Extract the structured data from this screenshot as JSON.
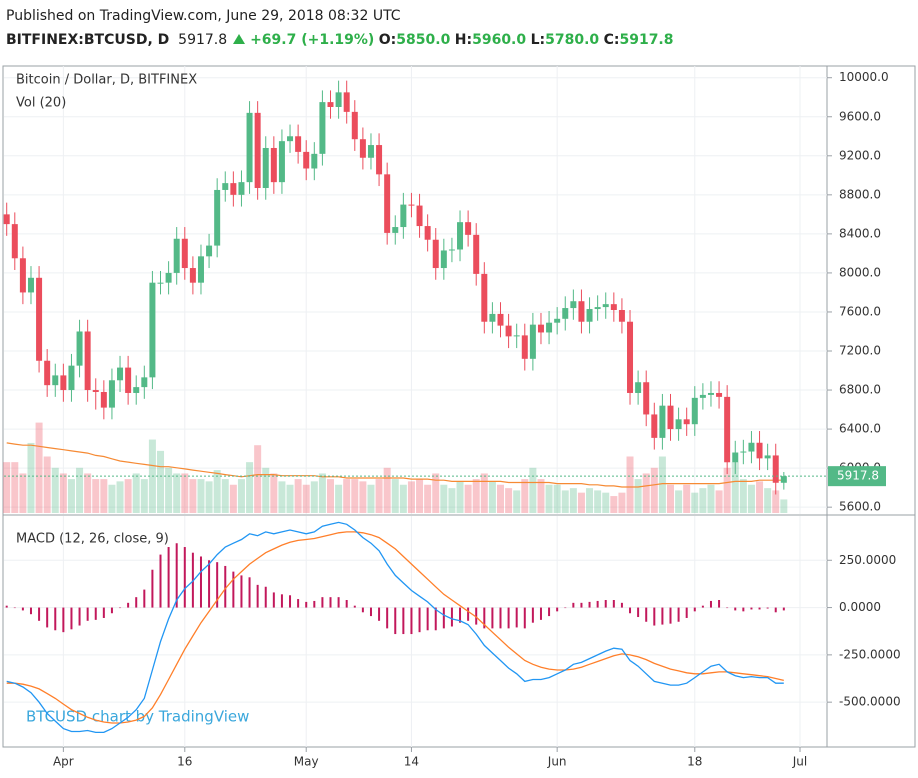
{
  "header": {
    "published": "Published on TradingView.com, June 29, 2018 08:32 UTC",
    "symbol": "BITFINEX:BTCUSD, D",
    "last": "5917.8",
    "change": "+69.7 (+1.19%)",
    "o_label": "O:",
    "o": "5850.0",
    "h_label": "H:",
    "h": "5960.0",
    "l_label": "L:",
    "l": "5780.0",
    "c_label": "C:",
    "c": "5917.8"
  },
  "chart_data": [
    {
      "type": "candlestick",
      "title": "Bitcoin / Dollar, D, BITFINEX",
      "watermark": "BTCUSD chart by TradingView",
      "up_color": "#53b987",
      "down_color": "#eb4d5c",
      "x": [
        "2018-03-25",
        "2018-03-26",
        "2018-03-27",
        "2018-03-28",
        "2018-03-29",
        "2018-03-30",
        "2018-03-31",
        "2018-04-01",
        "2018-04-02",
        "2018-04-03",
        "2018-04-04",
        "2018-04-05",
        "2018-04-06",
        "2018-04-07",
        "2018-04-08",
        "2018-04-09",
        "2018-04-10",
        "2018-04-11",
        "2018-04-12",
        "2018-04-13",
        "2018-04-14",
        "2018-04-15",
        "2018-04-16",
        "2018-04-17",
        "2018-04-18",
        "2018-04-19",
        "2018-04-20",
        "2018-04-21",
        "2018-04-22",
        "2018-04-23",
        "2018-04-24",
        "2018-04-25",
        "2018-04-26",
        "2018-04-27",
        "2018-04-28",
        "2018-04-29",
        "2018-04-30",
        "2018-05-01",
        "2018-05-02",
        "2018-05-03",
        "2018-05-04",
        "2018-05-05",
        "2018-05-06",
        "2018-05-07",
        "2018-05-08",
        "2018-05-09",
        "2018-05-10",
        "2018-05-11",
        "2018-05-12",
        "2018-05-13",
        "2018-05-14",
        "2018-05-15",
        "2018-05-16",
        "2018-05-17",
        "2018-05-18",
        "2018-05-19",
        "2018-05-20",
        "2018-05-21",
        "2018-05-22",
        "2018-05-23",
        "2018-05-24",
        "2018-05-25",
        "2018-05-26",
        "2018-05-27",
        "2018-05-28",
        "2018-05-29",
        "2018-05-30",
        "2018-05-31",
        "2018-06-01",
        "2018-06-02",
        "2018-06-03",
        "2018-06-04",
        "2018-06-05",
        "2018-06-06",
        "2018-06-07",
        "2018-06-08",
        "2018-06-09",
        "2018-06-10",
        "2018-06-11",
        "2018-06-12",
        "2018-06-13",
        "2018-06-14",
        "2018-06-15",
        "2018-06-16",
        "2018-06-17",
        "2018-06-18",
        "2018-06-19",
        "2018-06-20",
        "2018-06-21",
        "2018-06-22",
        "2018-06-23",
        "2018-06-24",
        "2018-06-25",
        "2018-06-26",
        "2018-06-27",
        "2018-06-28",
        "2018-06-29"
      ],
      "open": [
        8600,
        8500,
        8150,
        7800,
        7950,
        7100,
        6850,
        6950,
        6800,
        7050,
        7400,
        6800,
        6780,
        6620,
        6900,
        7030,
        6770,
        6830,
        6930,
        7900,
        7900,
        8000,
        8350,
        8050,
        7900,
        8170,
        8280,
        8850,
        8920,
        8800,
        8930,
        9640,
        8870,
        9280,
        8930,
        9350,
        9400,
        9240,
        9070,
        9220,
        9750,
        9700,
        9850,
        9650,
        9370,
        9180,
        9310,
        9010,
        8410,
        8470,
        8700,
        8690,
        8480,
        8340,
        8050,
        8230,
        8240,
        8520,
        8390,
        7990,
        7500,
        7580,
        7460,
        7350,
        7360,
        7120,
        7470,
        7390,
        7490,
        7530,
        7640,
        7710,
        7500,
        7630,
        7650,
        7680,
        7620,
        7500,
        6770,
        6880,
        6550,
        6310,
        6640,
        6400,
        6500,
        6450,
        6720,
        6750,
        6770,
        6730,
        6060,
        6160,
        6170,
        6260,
        6100,
        6130,
        5850
      ],
      "high": [
        8720,
        8620,
        8270,
        8070,
        8070,
        7220,
        7070,
        7070,
        7170,
        7520,
        7520,
        6920,
        6900,
        7020,
        7150,
        7150,
        6950,
        7050,
        8020,
        8020,
        8120,
        8470,
        8470,
        8170,
        8290,
        8400,
        8970,
        9040,
        9040,
        9050,
        9760,
        9760,
        9400,
        9400,
        9470,
        9520,
        9520,
        9360,
        9340,
        9870,
        9870,
        9970,
        9970,
        9770,
        9490,
        9430,
        9430,
        9130,
        8590,
        8820,
        8820,
        8810,
        8600,
        8460,
        8350,
        8360,
        8640,
        8640,
        8510,
        8110,
        7700,
        7700,
        7580,
        7480,
        7480,
        7590,
        7590,
        7610,
        7650,
        7760,
        7830,
        7830,
        7750,
        7770,
        7800,
        7800,
        7740,
        7620,
        7000,
        7000,
        6670,
        6760,
        6760,
        6620,
        6620,
        6840,
        6870,
        6890,
        6890,
        6850,
        6280,
        6290,
        6380,
        6380,
        6250,
        6250,
        5960
      ],
      "low": [
        8380,
        8030,
        7680,
        7680,
        6980,
        6730,
        6730,
        6680,
        6680,
        6930,
        6680,
        6600,
        6500,
        6500,
        6780,
        6650,
        6650,
        6710,
        6810,
        7780,
        7780,
        7880,
        7930,
        7780,
        7780,
        8050,
        8160,
        8730,
        8680,
        8680,
        8810,
        8750,
        8750,
        8810,
        8810,
        9230,
        9120,
        8950,
        8950,
        9100,
        9580,
        9580,
        9530,
        9250,
        9060,
        9060,
        8890,
        8290,
        8290,
        8350,
        8570,
        8360,
        8220,
        7930,
        7930,
        8110,
        8120,
        8270,
        7870,
        7380,
        7380,
        7340,
        7230,
        7230,
        7000,
        7000,
        7270,
        7270,
        7370,
        7410,
        7520,
        7380,
        7380,
        7510,
        7530,
        7500,
        7380,
        6650,
        6650,
        6430,
        6190,
        6190,
        6280,
        6280,
        6330,
        6330,
        6600,
        6630,
        6610,
        5940,
        5940,
        6040,
        6050,
        5980,
        5980,
        5730,
        5780
      ],
      "close": [
        8500,
        8150,
        7800,
        7950,
        7100,
        6850,
        6950,
        6800,
        7050,
        7400,
        6800,
        6780,
        6620,
        6900,
        7030,
        6770,
        6830,
        6930,
        7900,
        7900,
        8000,
        8350,
        8050,
        7900,
        8170,
        8280,
        8850,
        8920,
        8800,
        8930,
        9640,
        8870,
        9280,
        8930,
        9350,
        9400,
        9240,
        9070,
        9220,
        9750,
        9700,
        9850,
        9650,
        9370,
        9180,
        9310,
        9010,
        8410,
        8470,
        8700,
        8690,
        8480,
        8340,
        8050,
        8230,
        8240,
        8520,
        8390,
        7990,
        7500,
        7580,
        7460,
        7350,
        7360,
        7120,
        7470,
        7390,
        7490,
        7530,
        7640,
        7710,
        7500,
        7630,
        7650,
        7680,
        7620,
        7500,
        6770,
        6880,
        6550,
        6310,
        6640,
        6400,
        6500,
        6450,
        6720,
        6750,
        6770,
        6730,
        6060,
        6160,
        6170,
        6260,
        6100,
        6130,
        5850,
        5917.8
      ],
      "volume": {
        "name": "Vol (20)",
        "ma_color": "#f68a34",
        "ylim": [
          0,
          100
        ],
        "values": [
          45,
          45,
          35,
          62,
          80,
          50,
          40,
          35,
          30,
          40,
          35,
          30,
          30,
          25,
          28,
          30,
          35,
          30,
          65,
          55,
          40,
          35,
          35,
          30,
          30,
          28,
          38,
          30,
          25,
          30,
          45,
          60,
          40,
          35,
          28,
          25,
          30,
          25,
          28,
          35,
          30,
          25,
          30,
          30,
          28,
          25,
          30,
          40,
          30,
          25,
          28,
          30,
          25,
          35,
          25,
          22,
          28,
          25,
          30,
          35,
          28,
          25,
          22,
          20,
          30,
          40,
          30,
          25,
          25,
          20,
          22,
          18,
          22,
          20,
          18,
          15,
          18,
          50,
          30,
          35,
          40,
          50,
          25,
          20,
          25,
          18,
          22,
          25,
          20,
          40,
          45,
          30,
          25,
          28,
          22,
          20,
          12
        ],
        "ma": [
          62,
          61,
          60,
          60,
          59,
          58,
          57,
          56,
          55,
          54,
          53,
          51,
          50,
          48,
          46,
          45,
          44,
          43,
          42,
          41,
          41,
          40,
          39,
          38,
          37,
          36,
          35,
          34,
          33,
          32,
          33,
          34,
          34,
          34,
          33,
          33,
          33,
          33,
          33,
          32,
          32,
          32,
          31,
          31,
          31,
          31,
          31,
          31,
          31,
          31,
          30,
          30,
          30,
          29,
          29,
          28,
          28,
          28,
          28,
          28,
          28,
          28,
          27,
          27,
          27,
          27,
          27,
          27,
          26,
          26,
          26,
          26,
          25,
          25,
          24,
          24,
          23,
          23,
          23,
          24,
          25,
          26,
          26,
          26,
          26,
          26,
          26,
          26,
          26,
          27,
          28,
          28,
          28,
          29,
          29,
          29,
          29
        ]
      },
      "xlim": [
        "2018-03-24T16:00Z",
        "2018-07-04T08:00Z"
      ],
      "xticks": [
        {
          "value": "2018-04-01",
          "label": "Apr"
        },
        {
          "value": "2018-04-16",
          "label": "16"
        },
        {
          "value": "2018-05-01",
          "label": "May"
        },
        {
          "value": "2018-05-14",
          "label": "14"
        },
        {
          "value": "2018-06-01",
          "label": "Jun"
        },
        {
          "value": "2018-06-18",
          "label": "18"
        },
        {
          "value": "2018-07-01",
          "label": "Jul"
        }
      ],
      "ylim": [
        5530,
        10120
      ],
      "yticks": [
        {
          "value": 5600,
          "label": "5600.0"
        },
        {
          "value": 6000,
          "label": "6000.0"
        },
        {
          "value": 6400,
          "label": "6400.0"
        },
        {
          "value": 6800,
          "label": "6800.0"
        },
        {
          "value": 7200,
          "label": "7200.0"
        },
        {
          "value": 7600,
          "label": "7600.0"
        },
        {
          "value": 8000,
          "label": "8000.0"
        },
        {
          "value": 8400,
          "label": "8400.0"
        },
        {
          "value": 8800,
          "label": "8800.0"
        },
        {
          "value": 9200,
          "label": "9200.0"
        },
        {
          "value": 9600,
          "label": "9600.0"
        },
        {
          "value": 10000,
          "label": "10000.0"
        }
      ],
      "grid": true
    },
    {
      "type": "macd",
      "title": "MACD (12, 26, close, 9)",
      "macd_color": "#2196f3",
      "signal_color": "#ff7f2a",
      "histogram_color": "#c2185b",
      "macd": [
        -390,
        -400,
        -420,
        -450,
        -500,
        -560,
        -600,
        -640,
        -655,
        -655,
        -650,
        -660,
        -660,
        -640,
        -610,
        -580,
        -540,
        -480,
        -330,
        -180,
        -60,
        40,
        100,
        140,
        190,
        230,
        280,
        320,
        340,
        360,
        390,
        380,
        400,
        390,
        400,
        410,
        400,
        390,
        400,
        430,
        440,
        450,
        440,
        410,
        370,
        340,
        300,
        230,
        170,
        130,
        90,
        60,
        30,
        -10,
        -40,
        -60,
        -70,
        -90,
        -140,
        -200,
        -240,
        -280,
        -320,
        -350,
        -390,
        -380,
        -380,
        -370,
        -350,
        -330,
        -300,
        -290,
        -270,
        -250,
        -230,
        -215,
        -220,
        -280,
        -310,
        -350,
        -390,
        -400,
        -410,
        -410,
        -400,
        -370,
        -340,
        -310,
        -300,
        -340,
        -360,
        -370,
        -365,
        -370,
        -370,
        -400,
        -400
      ],
      "signal": [
        -400,
        -400,
        -405,
        -415,
        -430,
        -455,
        -480,
        -510,
        -540,
        -560,
        -580,
        -595,
        -605,
        -610,
        -610,
        -605,
        -595,
        -575,
        -530,
        -460,
        -380,
        -300,
        -220,
        -150,
        -80,
        -20,
        40,
        100,
        150,
        190,
        230,
        260,
        290,
        310,
        330,
        345,
        355,
        360,
        365,
        375,
        385,
        395,
        400,
        400,
        395,
        385,
        370,
        340,
        310,
        270,
        230,
        190,
        150,
        110,
        70,
        40,
        10,
        -20,
        -50,
        -90,
        -130,
        -170,
        -210,
        -245,
        -280,
        -300,
        -315,
        -325,
        -330,
        -330,
        -325,
        -315,
        -300,
        -285,
        -270,
        -255,
        -245,
        -250,
        -260,
        -275,
        -295,
        -310,
        -325,
        -335,
        -345,
        -350,
        -350,
        -345,
        -340,
        -340,
        -345,
        -350,
        -355,
        -360,
        -365,
        -375,
        -385
      ],
      "histogram": [
        10,
        0,
        -15,
        -35,
        -70,
        -105,
        -120,
        -130,
        -115,
        -95,
        -70,
        -65,
        -55,
        -30,
        0,
        25,
        55,
        95,
        200,
        280,
        320,
        340,
        320,
        290,
        270,
        250,
        240,
        220,
        190,
        170,
        160,
        120,
        110,
        80,
        70,
        65,
        45,
        30,
        35,
        55,
        55,
        55,
        40,
        10,
        -25,
        -45,
        -70,
        -110,
        -140,
        -140,
        -140,
        -130,
        -120,
        -120,
        -110,
        -100,
        -80,
        -70,
        -90,
        -110,
        -110,
        -110,
        -110,
        -105,
        -110,
        -80,
        -65,
        -45,
        -20,
        0,
        25,
        25,
        30,
        35,
        40,
        40,
        25,
        -30,
        -50,
        -75,
        -95,
        -90,
        -85,
        -75,
        -55,
        -20,
        10,
        35,
        40,
        0,
        -15,
        -20,
        -10,
        -10,
        -5,
        -25,
        -15
      ],
      "ylim": [
        -737,
        484
      ],
      "yticks": [
        {
          "value": 250,
          "label": "250.0000"
        },
        {
          "value": 0,
          "label": "0.0000"
        },
        {
          "value": -250,
          "label": "-250.0000"
        },
        {
          "value": -500,
          "label": "-500.0000"
        }
      ]
    }
  ]
}
